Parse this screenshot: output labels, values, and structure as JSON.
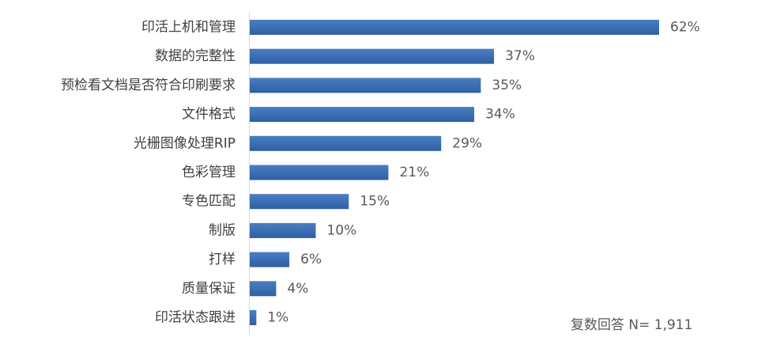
{
  "chart_data": {
    "type": "bar",
    "orientation": "horizontal",
    "categories": [
      "印活上机和管理",
      "数据的完整性",
      "预检看文档是否符合印刷要求",
      "文件格式",
      "光栅图像处理RIP",
      "色彩管理",
      "专色匹配",
      "制版",
      "打样",
      "质量保证",
      "印活状态跟进"
    ],
    "values": [
      62,
      37,
      35,
      34,
      29,
      21,
      15,
      10,
      6,
      4,
      1
    ],
    "value_labels": [
      "62%",
      "37%",
      "35%",
      "34%",
      "29%",
      "21%",
      "15%",
      "10%",
      "6%",
      "4%",
      "1%"
    ],
    "unit": "%",
    "xlim": [
      0,
      62
    ],
    "grid": false,
    "legend": "none",
    "bar_color": "#2E5FA3",
    "bar_color_light": "#4A7EC4",
    "axis_color": "#D9D9D9"
  },
  "note": "复数回答 N= 1,911"
}
